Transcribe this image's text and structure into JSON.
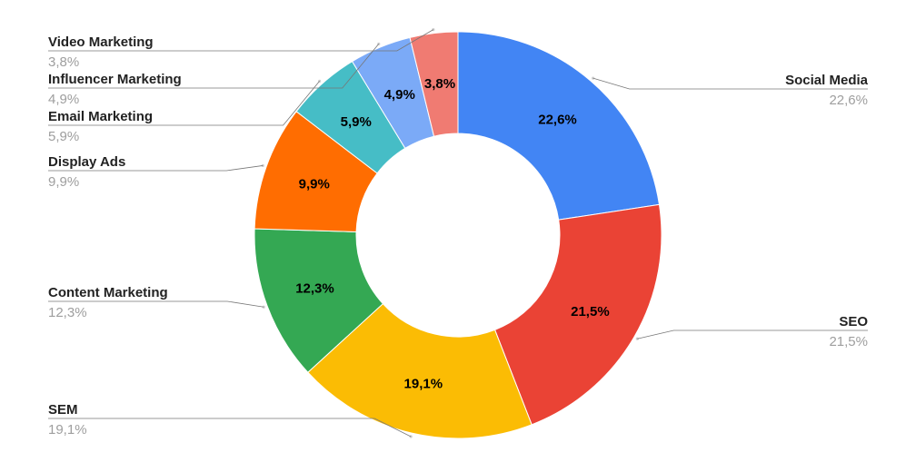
{
  "chart_data": {
    "type": "pie",
    "donut": true,
    "title": "",
    "categories": [
      "Social Media",
      "SEO",
      "SEM",
      "Content Marketing",
      "Display Ads",
      "Email Marketing",
      "Influencer Marketing",
      "Video Marketing"
    ],
    "values": [
      22.6,
      21.5,
      19.1,
      12.3,
      9.9,
      5.9,
      4.9,
      3.8
    ],
    "value_labels": [
      "22,6%",
      "21,5%",
      "19,1%",
      "12,3%",
      "9,9%",
      "5,9%",
      "4,9%",
      "3,8%"
    ],
    "colors": [
      "#4285f4",
      "#ea4335",
      "#fbbc04",
      "#34a853",
      "#ff6d01",
      "#46bdc6",
      "#7baaf7",
      "#f07b72"
    ],
    "legend_placement": "labels-beside-slices"
  }
}
